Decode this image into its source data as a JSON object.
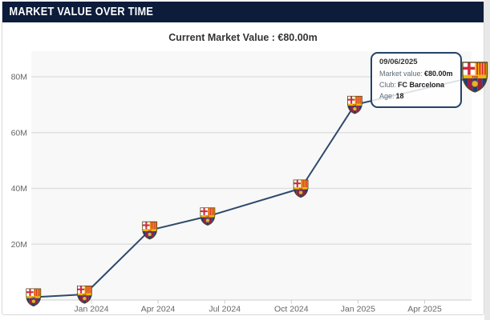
{
  "header": {
    "title": "MARKET VALUE OVER TIME"
  },
  "subtitle": {
    "text": "Current Market Value : €80.00m"
  },
  "tooltip": {
    "date": "09/06/2025",
    "rows": [
      {
        "label": "Market value:",
        "value": "€80.00m"
      },
      {
        "label": "Club:",
        "value": "FC Barcelona"
      },
      {
        "label": "Age:",
        "value": "18"
      }
    ]
  },
  "chart_data": {
    "type": "line",
    "title": "Market value over time",
    "series_name": "Market value",
    "unit": "€ million",
    "marker_icon": "fc-barcelona-crest-icon",
    "points": [
      {
        "date": "2023-10-13",
        "value": 1
      },
      {
        "date": "2023-12-22",
        "value": 2
      },
      {
        "date": "2024-03-20",
        "value": 25
      },
      {
        "date": "2024-06-08",
        "value": 30
      },
      {
        "date": "2024-10-14",
        "value": 40
      },
      {
        "date": "2024-12-27",
        "value": 70
      },
      {
        "date": "2025-06-09",
        "value": 80,
        "current": true
      }
    ],
    "xticks": [
      {
        "date": "2024-01-01",
        "label": "Jan 2024"
      },
      {
        "date": "2024-04-01",
        "label": "Apr 2024"
      },
      {
        "date": "2024-07-01",
        "label": "Jul 2024"
      },
      {
        "date": "2024-10-01",
        "label": "Oct 2024"
      },
      {
        "date": "2025-01-01",
        "label": "Jan 2025"
      },
      {
        "date": "2025-04-01",
        "label": "Apr 2025"
      }
    ],
    "yticks": [
      {
        "value": 20,
        "label": "20M"
      },
      {
        "value": 40,
        "label": "40M"
      },
      {
        "value": 60,
        "label": "60M"
      },
      {
        "value": 80,
        "label": "80M"
      }
    ],
    "ylim": [
      0,
      89
    ],
    "grid": "horizontal-only",
    "legend": "none",
    "colors": {
      "header_bg": "#0c1c3a",
      "line": "#2e4a6b",
      "grid": "#e0e0e0",
      "axis": "#cccccc",
      "tick_label": "#666666",
      "plot_bg": "#f8f8f8",
      "tooltip_border": "#24436a"
    }
  }
}
